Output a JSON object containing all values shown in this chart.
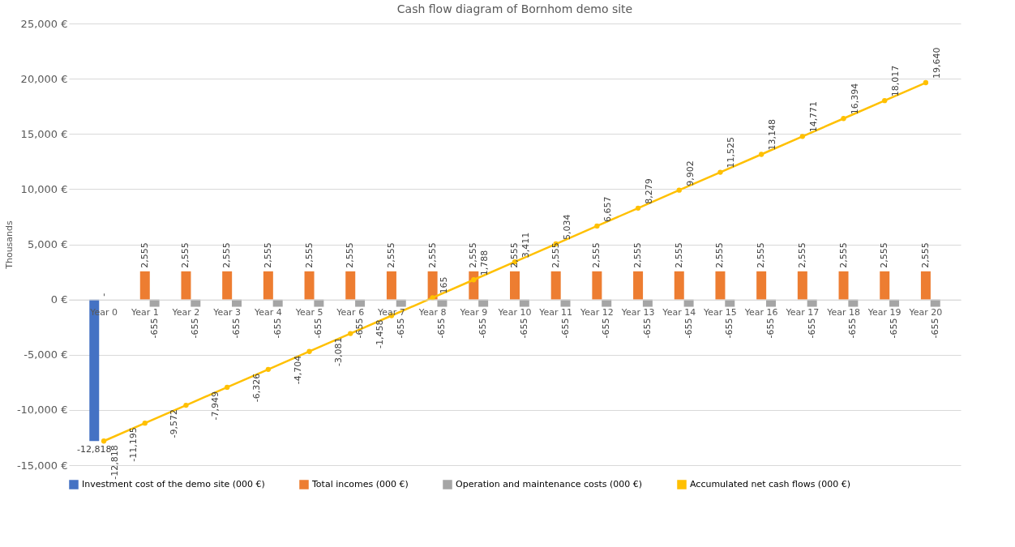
{
  "chart_data": {
    "type": "bar",
    "title": "Cash flow diagram of Bornhom demo site",
    "ylabel": "Thousands",
    "categories": [
      "Year 0",
      "Year 1",
      "Year 2",
      "Year 3",
      "Year 4",
      "Year 5",
      "Year 6",
      "Year 7",
      "Year 8",
      "Year 9",
      "Year 10",
      "Year 11",
      "Year 12",
      "Year 13",
      "Year 14",
      "Year 15",
      "Year 16",
      "Year 17",
      "Year 18",
      "Year 19",
      "Year 20"
    ],
    "series": [
      {
        "name": "Investment cost of the demo site (000 €)",
        "color": "#4472c4",
        "values": [
          -12818,
          null,
          null,
          null,
          null,
          null,
          null,
          null,
          null,
          null,
          null,
          null,
          null,
          null,
          null,
          null,
          null,
          null,
          null,
          null,
          null
        ],
        "value_labels": [
          "-12,818",
          null,
          null,
          null,
          null,
          null,
          null,
          null,
          null,
          null,
          null,
          null,
          null,
          null,
          null,
          null,
          null,
          null,
          null,
          null,
          null
        ]
      },
      {
        "name": "Total incomes (000 €)",
        "color": "#ed7d31",
        "values": [
          0,
          2555,
          2555,
          2555,
          2555,
          2555,
          2555,
          2555,
          2555,
          2555,
          2555,
          2555,
          2555,
          2555,
          2555,
          2555,
          2555,
          2555,
          2555,
          2555,
          2555
        ],
        "value_labels": [
          "-",
          "2,555",
          "2,555",
          "2,555",
          "2,555",
          "2,555",
          "2,555",
          "2,555",
          "2,555",
          "2,555",
          "2,555",
          "2,555",
          "2,555",
          "2,555",
          "2,555",
          "2,555",
          "2,555",
          "2,555",
          "2,555",
          "2,555",
          "2,555"
        ]
      },
      {
        "name": "Operation and maintenance costs (000 €)",
        "color": "#a5a5a5",
        "values": [
          null,
          -655,
          -655,
          -655,
          -655,
          -655,
          -655,
          -655,
          -655,
          -655,
          -655,
          -655,
          -655,
          -655,
          -655,
          -655,
          -655,
          -655,
          -655,
          -655,
          -655
        ],
        "value_labels": [
          null,
          "-655",
          "-655",
          "-655",
          "-655",
          "-655",
          "-655",
          "-655",
          "-655",
          "-655",
          "-655",
          "-655",
          "-655",
          "-655",
          "-655",
          "-655",
          "-655",
          "-655",
          "-655",
          "-655",
          "-655"
        ]
      },
      {
        "name": "Accumulated net cash flows (000 €)",
        "type": "line",
        "color": "#ffc000",
        "values": [
          -12818,
          -11195,
          -9572,
          -7949,
          -6326,
          -4704,
          -3081,
          -1458,
          165,
          1788,
          3411,
          5034,
          6657,
          8279,
          9902,
          11525,
          13148,
          14771,
          16394,
          18017,
          19640
        ],
        "value_labels": [
          "-12,818",
          "-11,195",
          "-9,572",
          "-7,949",
          "-6,326",
          "-4,704",
          "-3,081",
          "-1,458",
          "165",
          "1,788",
          "3,411",
          "5,034",
          "6,657",
          "8,279",
          "9,902",
          "11,525",
          "13,148",
          "14,771",
          "16,394",
          "18,017",
          "19,640"
        ]
      }
    ],
    "ylim": [
      -15000,
      25000
    ],
    "yticks": [
      {
        "value": -15000,
        "label": "-15,000 €"
      },
      {
        "value": -10000,
        "label": "-10,000 €"
      },
      {
        "value": -5000,
        "label": "-5,000 €"
      },
      {
        "value": 0,
        "label": "0 €"
      },
      {
        "value": 5000,
        "label": "5,000 €"
      },
      {
        "value": 10000,
        "label": "10,000 €"
      },
      {
        "value": 15000,
        "label": "15,000 €"
      },
      {
        "value": 20000,
        "label": "20,000 €"
      },
      {
        "value": 25000,
        "label": "25,000 €"
      }
    ],
    "grid": "y",
    "legend": "bottom",
    "marker": "circle"
  }
}
